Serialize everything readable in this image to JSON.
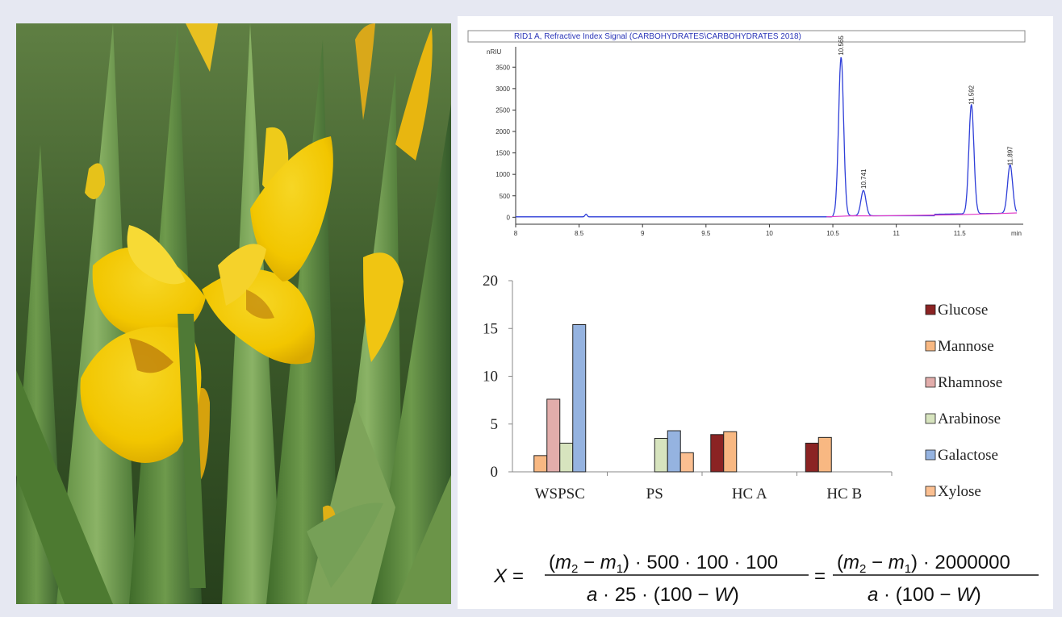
{
  "photo": {
    "subject": "yellow iris flower"
  },
  "chromatogram": {
    "header": "RID1 A, Refractive Index Signal (CARBOHYDRATES\\CARBOHYDRATES 2018)",
    "y_unit": "nRIU",
    "x_unit": "min"
  },
  "chart_data": [
    {
      "type": "line",
      "title": "RID1 A, Refractive Index Signal (CARBOHYDRATES\\CARBOHYDRATES 2018)",
      "ylabel": "nRIU",
      "xlabel": "min",
      "xlim": [
        8,
        11.95
      ],
      "ylim": [
        -50,
        3900
      ],
      "xticks": [
        8,
        8.5,
        9,
        9.5,
        10,
        10.5,
        11,
        11.5
      ],
      "yticks": [
        0,
        500,
        1000,
        1500,
        2000,
        2500,
        3000,
        3500
      ],
      "x_tick_labels": [
        "8",
        "8.5",
        "9",
        "9.5",
        "10",
        "10.5",
        "11",
        "11.5"
      ],
      "y_tick_labels": [
        "0",
        "500",
        "1000",
        "1500",
        "2000",
        "2500",
        "3000",
        "3500"
      ],
      "peaks": [
        {
          "rt": 10.565,
          "height": 3700,
          "label": "10.565"
        },
        {
          "rt": 10.741,
          "height": 590,
          "label": "10.741"
        },
        {
          "rt": 11.592,
          "height": 2550,
          "label": "11.592"
        },
        {
          "rt": 11.897,
          "height": 1130,
          "label": "11.897"
        }
      ],
      "baseline_level": 10,
      "colors": {
        "signal": "#2f3fd8",
        "baseline": "#e040c8"
      }
    },
    {
      "type": "bar",
      "categories": [
        "WSPSC",
        "PS",
        "HC A",
        "HC B"
      ],
      "ylim": [
        0,
        20
      ],
      "yticks": [
        0,
        5,
        10,
        15,
        20
      ],
      "series": [
        {
          "name": "Glucose",
          "color": "#8b2323",
          "values": [
            null,
            null,
            3.9,
            3.0
          ]
        },
        {
          "name": "Mannose",
          "color": "#f8b882",
          "values": [
            1.7,
            null,
            4.2,
            3.6
          ]
        },
        {
          "name": "Rhamnose",
          "color": "#e2adab",
          "values": [
            7.6,
            null,
            null,
            null
          ]
        },
        {
          "name": "Arabinose",
          "color": "#d7e4be",
          "values": [
            3.0,
            3.5,
            null,
            null
          ]
        },
        {
          "name": "Galactose",
          "color": "#95b3e0",
          "values": [
            15.4,
            4.3,
            null,
            null
          ]
        },
        {
          "name": "Xylose",
          "color": "#fbbf91",
          "values": [
            null,
            2.0,
            null,
            null
          ]
        }
      ],
      "legend_position": "right"
    }
  ]
}
